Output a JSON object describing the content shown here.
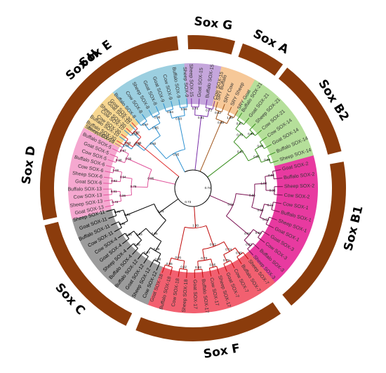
{
  "colors": {
    "ring": "#8b3c0c",
    "branch_root": "#000000"
  },
  "groups": [
    {
      "id": "soxE",
      "label": "Sox E",
      "band": "#9ccfe0",
      "branch": "#2a8fd0",
      "leaves": [
        "Sheep SOX-10",
        "Buffalo SOX-10",
        "Cow SOX-10",
        "Goat SOX-10",
        "Buffalo SOX-8",
        "Cow SOX-8",
        "Sheep SOX-8",
        "Goat SOX-8",
        "Goat SOX-9",
        "Cow SOX-9",
        "Buffalo SOX-9",
        "Sheep SOX-9"
      ]
    },
    {
      "id": "soxG",
      "label": "Sox G",
      "band": "#c5a6dc",
      "branch": "#7a2fa8",
      "leaves": [
        "Sheep SOX-15",
        "Goat SOX-15",
        "Buffalo SOX-15",
        "Cow SOX-15"
      ]
    },
    {
      "id": "soxA",
      "label": "Sox A",
      "band": "#f6c898",
      "branch": "#a0541a",
      "leaves": [
        "SRY Buffalo",
        "SRY Cow",
        "SRY Sheep",
        "SRY Goat"
      ]
    },
    {
      "id": "soxB2",
      "label": "Sox B2",
      "band": "#b5df9a",
      "branch": "#3a8f1f",
      "leaves": [
        "Buffalo SOX-21",
        "Goat SOX-21",
        "Sheep SOX-21",
        "Cow SOX-21",
        "Cow SOX-14",
        "Goat SOX-14",
        "Buffalo SOX-14",
        "Sheep SOX-14"
      ]
    },
    {
      "id": "soxB1",
      "label": "Sox B1",
      "band": "#e83aa0",
      "branch": "#7a1052",
      "leaves": [
        "Goat SOX-2",
        "Buffalo SOX-2",
        "Sheep SOX-2",
        "Cow SOX-2",
        "Cow SOX-1",
        "Buffalo SOX-1",
        "Sheep SOX-1",
        "Goat SOX-1",
        "Goat SOX-3",
        "Cow SOX-3",
        "Buffalo SOX-3",
        "Sheep SOX-3"
      ]
    },
    {
      "id": "soxF",
      "label": "Sox F",
      "band": "#f26070",
      "branch": "#c00a0a",
      "leaves": [
        "Sheep SOX-7",
        "Buffalo SOX-7",
        "Cow SOX-7",
        "Goat SOX-7",
        "Sheep SOX-17",
        "Cow SOX-17",
        "Buffalo SOX-17",
        "Goat SOX-17",
        "Sheep SOX-18",
        "Cow SOX-18",
        "Buffalo SOX-18",
        "Goat SOX-18"
      ]
    },
    {
      "id": "soxC",
      "label": "Sox C",
      "band": "#9c9c9c",
      "branch": "#000000",
      "leaves": [
        "Cow SOX-12",
        "Sheep SOX-12",
        "Goat SOX-12",
        "Buffalo SOX-12",
        "Buffalo SOX-4",
        "Sheep SOX-4",
        "Goat SOX-4",
        "Cow SOX-4",
        "Cow SOX-11",
        "Buffalo SOX-11",
        "Goat SOX-11",
        "Sheep SOX-11"
      ]
    },
    {
      "id": "soxD",
      "label": "Sox D",
      "band": "#f5a8d0",
      "branch": "#e0559c",
      "leaves": [
        "Goat SOX-13",
        "Sheep SOX-13",
        "Cow SOX-13",
        "Buffalo SOX-13",
        "Goat SOX-6",
        "Sheep SOX-6",
        "Cow SOX-6",
        "Buffalo SOX-6",
        "Cow SOX-5",
        "Goat SOX-5",
        "Buffalo SOX-5",
        "Sheep SOX-5"
      ]
    },
    {
      "id": "soxH",
      "label": "Sox H",
      "band": "#f6d690",
      "branch": "#e03030",
      "leaves": [
        "Buffalo SOX-30",
        "Cow SOX-30",
        "Sheep SOX-30",
        "Goat SOX-30"
      ]
    }
  ],
  "bootstrap_labels": [
    "1.00",
    "0.98",
    "0.97",
    "0.96",
    "0.94",
    "0.99",
    "0.78",
    "0.85",
    "0.93",
    "0.92",
    "0.95",
    "0.74",
    "0.73",
    "0.91",
    "0.82"
  ]
}
